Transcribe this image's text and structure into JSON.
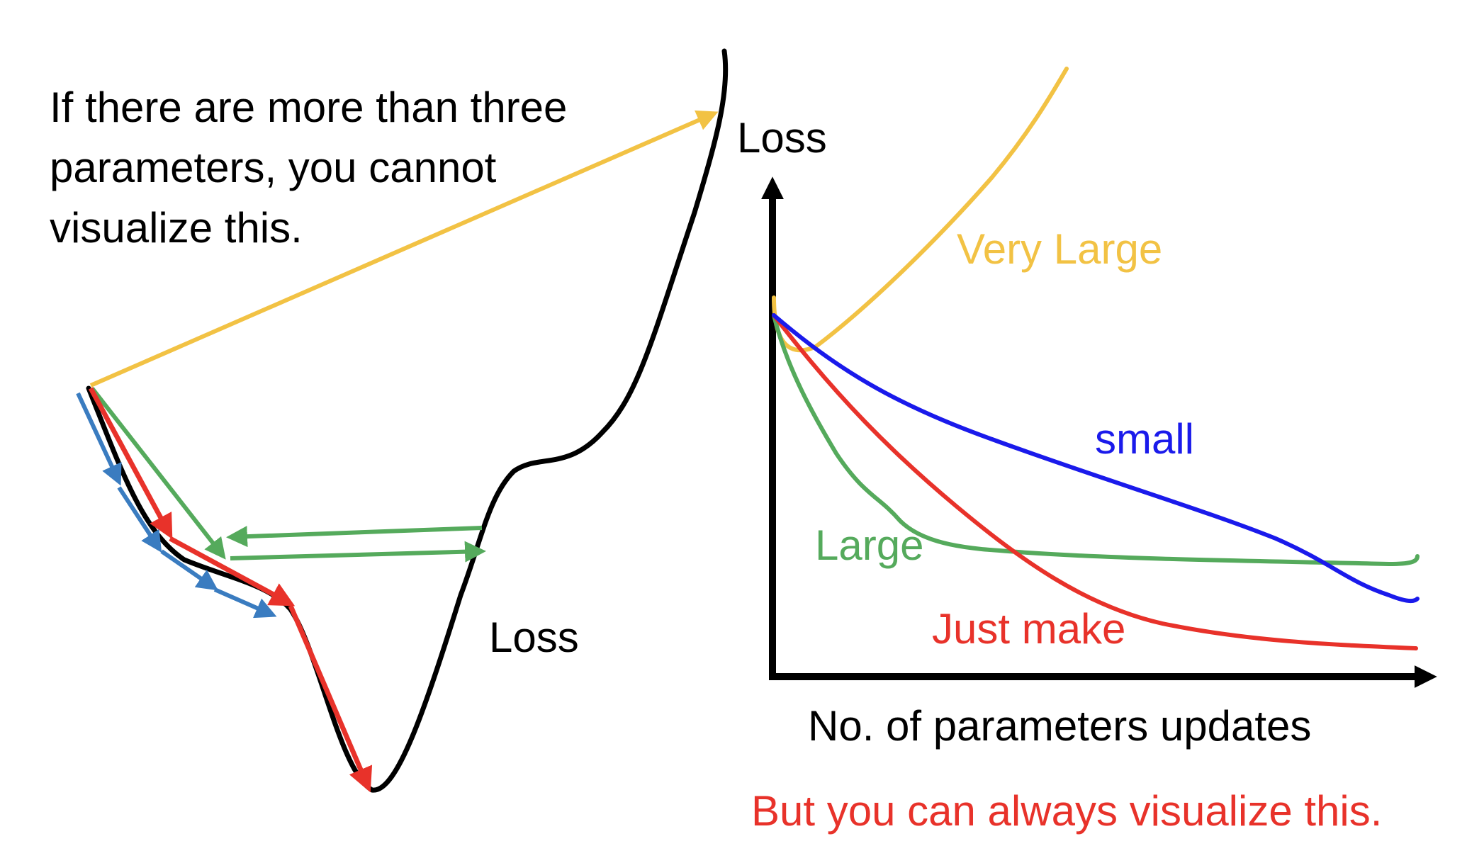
{
  "left_panel": {
    "note_lines": [
      "If there are more than three",
      "parameters, you cannot",
      "visualize this."
    ],
    "curve_label": "Loss"
  },
  "right_panel": {
    "y_axis_label": "Loss",
    "x_axis_label": "No. of parameters updates",
    "curve_labels": {
      "very_large": "Very Large",
      "small": "small",
      "large": "Large",
      "just_make": "Just make"
    },
    "caption": "But you can always visualize this."
  },
  "colors": {
    "very_large": "#f2c244",
    "small": "#1a1aeb",
    "large": "#55aa5c",
    "just_make": "#e8322a",
    "steps_blue": "#3a7cc0",
    "loss_curve": "#000000"
  }
}
